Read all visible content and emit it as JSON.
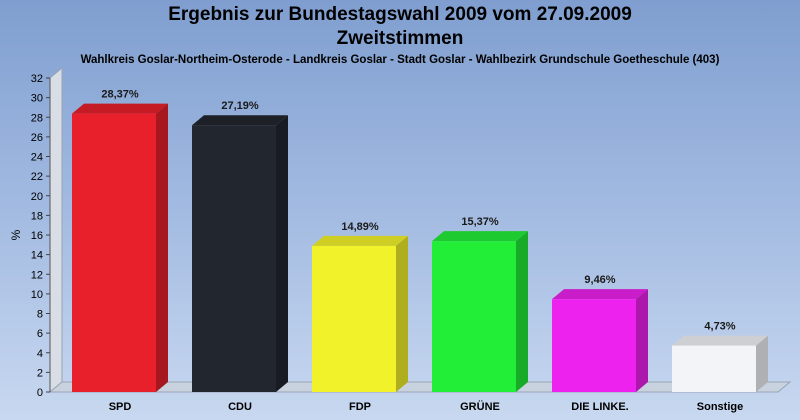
{
  "chart_data": {
    "type": "bar",
    "title": "Ergebnis zur Bundestagswahl 2009 vom 27.09.2009",
    "subtitle": "Zweitstimmen",
    "caption": "Wahlkreis Goslar-Northeim-Osterode - Landkreis Goslar - Stadt Goslar - Wahlbezirk Grundschule Goetheschule (403)",
    "xlabel": "",
    "ylabel": "%",
    "ylim": [
      0,
      32
    ],
    "yticks": [
      "0",
      "2",
      "4",
      "6",
      "8",
      "10",
      "12",
      "14",
      "16",
      "18",
      "20",
      "22",
      "24",
      "26",
      "28",
      "30",
      "32"
    ],
    "categories": [
      "SPD",
      "CDU",
      "FDP",
      "GRÜNE",
      "DIE LINKE.",
      "Sonstige"
    ],
    "values": [
      28.37,
      27.19,
      14.89,
      15.37,
      9.46,
      4.73
    ],
    "value_labels": [
      "28,37%",
      "27,19%",
      "14,89%",
      "15,37%",
      "9,46%",
      "4,73%"
    ],
    "colors": [
      "#e8202c",
      "#22262e",
      "#f2f22a",
      "#22ee38",
      "#ee22ee",
      "#f2f4f8"
    ],
    "grid": false,
    "legend": "none"
  }
}
